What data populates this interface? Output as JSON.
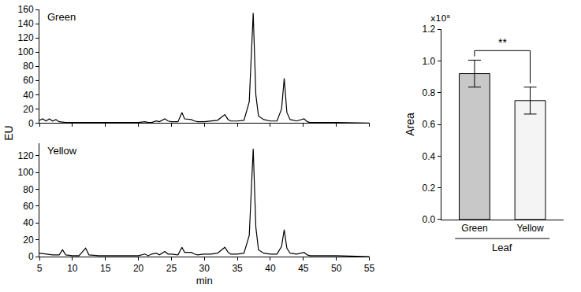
{
  "chart_data": [
    {
      "type": "line",
      "title": "Green",
      "y_label": "EU",
      "color": "#000000",
      "tick_labels": "y",
      "x": [
        5,
        5.5,
        6,
        6.5,
        7,
        7.5,
        8,
        9,
        10,
        15,
        20,
        21,
        21.5,
        22,
        22.7,
        23.2,
        24,
        24.5,
        25,
        26,
        26.6,
        27,
        28,
        28.5,
        29,
        30,
        31,
        32,
        33.1,
        33.6,
        34,
        35,
        36,
        36.8,
        37.4,
        37.8,
        38.2,
        39,
        40,
        41,
        41.7,
        42.1,
        42.5,
        43,
        44,
        45.1,
        45.6,
        46,
        50,
        55
      ],
      "values": [
        4,
        6,
        3,
        6,
        3,
        5,
        2,
        1,
        1,
        1,
        1,
        2,
        1,
        1,
        3,
        2,
        6,
        3,
        2,
        2,
        15,
        6,
        5,
        3,
        2,
        2,
        3,
        4,
        12,
        5,
        3,
        3,
        4,
        30,
        155,
        40,
        10,
        5,
        3,
        3,
        20,
        63,
        15,
        5,
        3,
        6,
        2,
        1,
        1,
        0
      ],
      "xlim": [
        5,
        55
      ],
      "xticks": [
        5,
        10,
        15,
        20,
        25,
        30,
        35,
        40,
        45,
        50,
        55
      ],
      "ylim": [
        0,
        160
      ],
      "yticks": [
        0,
        20,
        40,
        60,
        80,
        100,
        120,
        140,
        160
      ]
    },
    {
      "type": "line",
      "title": "Yellow",
      "x_label": "min",
      "color": "#000000",
      "x": [
        5,
        6,
        7,
        8,
        8.5,
        9,
        10,
        11,
        12,
        12.5,
        14,
        20,
        21,
        21.5,
        22,
        22.7,
        23.2,
        24,
        24.5,
        25,
        26,
        26.6,
        27,
        28,
        28.5,
        29,
        30,
        31,
        32,
        33.1,
        33.6,
        34,
        35,
        36,
        36.8,
        37.4,
        37.8,
        38.2,
        39,
        40,
        41,
        41.7,
        42.1,
        42.5,
        43,
        44,
        45.1,
        45.6,
        46,
        50,
        55
      ],
      "values": [
        4,
        3,
        2,
        2,
        8,
        2,
        1,
        1,
        10,
        2,
        1,
        1,
        3,
        1,
        3,
        4,
        2,
        6,
        3,
        3,
        2,
        11,
        5,
        5,
        3,
        2,
        3,
        3,
        4,
        11,
        5,
        3,
        3,
        4,
        25,
        128,
        35,
        8,
        4,
        3,
        3,
        12,
        32,
        10,
        4,
        3,
        5,
        2,
        1,
        1,
        0
      ],
      "xlim": [
        5,
        55
      ],
      "xticks": [
        5,
        10,
        15,
        20,
        25,
        30,
        35,
        40,
        45,
        50,
        55
      ],
      "ylim": [
        0,
        135
      ],
      "yticks": [
        0,
        20,
        40,
        60,
        80,
        100,
        120
      ]
    },
    {
      "type": "bar",
      "y_label": "Area",
      "y_multiplier": "x10⁸",
      "group_label": "Leaf",
      "significance": "**",
      "categories": [
        "Green",
        "Yellow"
      ],
      "values": [
        0.92,
        0.75
      ],
      "errors": [
        0.085,
        0.085
      ],
      "colors": [
        "#c8c8c8",
        "#f4f4f4"
      ],
      "ylim": [
        0,
        1.2
      ],
      "yticks": [
        {
          "value": 0,
          "label": "0.0"
        },
        0.2,
        0.4,
        0.6,
        0.8,
        {
          "value": 1,
          "label": "1.0"
        },
        1.2
      ]
    }
  ]
}
